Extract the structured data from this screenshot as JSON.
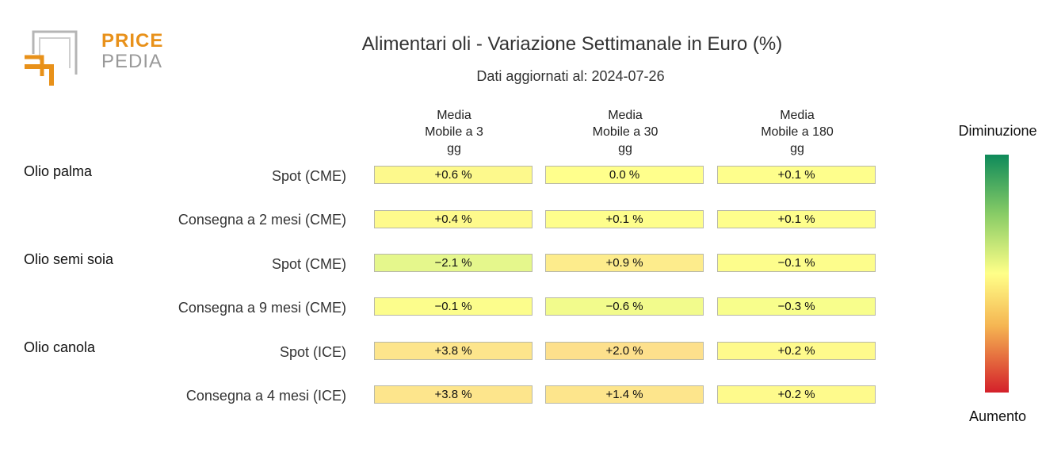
{
  "brand": {
    "line1": "PRICE",
    "line2": "PEDIA"
  },
  "title": "Alimentari oli - Variazione Settimanale in Euro (%)",
  "subtitle": "Dati aggiornati al: 2024-07-26",
  "columns": [
    {
      "line1": "Media",
      "line2": "Mobile a 3",
      "line3": "gg"
    },
    {
      "line1": "Media",
      "line2": "Mobile a 30",
      "line3": "gg"
    },
    {
      "line1": "Media",
      "line2": "Mobile a 180",
      "line3": "gg"
    }
  ],
  "groups": [
    "Olio palma",
    "Olio semi soia",
    "Olio canola"
  ],
  "rows": [
    "Spot (CME)",
    "Consegna a 2 mesi (CME)",
    "Spot (CME)",
    "Consegna a 9 mesi (CME)",
    "Spot (ICE)",
    "Consegna a 4 mesi (ICE)"
  ],
  "cells": [
    [
      "+0.6 %",
      "0.0 %",
      "+0.1 %"
    ],
    [
      "+0.4 %",
      "+0.1 %",
      "+0.1 %"
    ],
    [
      "−2.1 %",
      "+0.9 %",
      "−0.1 %"
    ],
    [
      "−0.1 %",
      "−0.6 %",
      "−0.3 %"
    ],
    [
      "+3.8 %",
      "+2.0 %",
      "+0.2 %"
    ],
    [
      "+3.8 %",
      "+1.4 %",
      "+0.2 %"
    ]
  ],
  "cell_colors": [
    [
      "#fdf98c",
      "#ffff8c",
      "#fefe8c"
    ],
    [
      "#fefa8c",
      "#fefe8c",
      "#fefe8c"
    ],
    [
      "#e5f78c",
      "#fdec8c",
      "#fdfd8c"
    ],
    [
      "#fcfd8c",
      "#f2fb8c",
      "#f8fe8c"
    ],
    [
      "#fde58c",
      "#fde08c",
      "#fefa8c"
    ],
    [
      "#fde58c",
      "#fde58c",
      "#fefa8c"
    ]
  ],
  "chart_data": {
    "type": "heatmap",
    "title": "Alimentari oli - Variazione Settimanale in Euro (%)",
    "subtitle": "Dati aggiornati al: 2024-07-26",
    "x_categories": [
      "Media Mobile a 3 gg",
      "Media Mobile a 30 gg",
      "Media Mobile a 180 gg"
    ],
    "y_categories": [
      "Olio palma - Spot (CME)",
      "Olio palma - Consegna a 2 mesi (CME)",
      "Olio semi soia - Spot (CME)",
      "Olio semi soia - Consegna a 9 mesi (CME)",
      "Olio canola - Spot (ICE)",
      "Olio canola - Consegna a 4 mesi (ICE)"
    ],
    "values": [
      [
        0.6,
        0.0,
        0.1
      ],
      [
        0.4,
        0.1,
        0.1
      ],
      [
        -2.1,
        0.9,
        -0.1
      ],
      [
        -0.1,
        -0.6,
        -0.3
      ],
      [
        3.8,
        2.0,
        0.2
      ],
      [
        3.8,
        1.4,
        0.2
      ]
    ],
    "color_scale": {
      "top_label": "Diminuzione",
      "bottom_label": "Aumento",
      "colors": [
        "#0e8a5a",
        "#ffff88",
        "#d4202a"
      ]
    }
  },
  "legend": {
    "top": "Diminuzione",
    "bottom": "Aumento"
  }
}
